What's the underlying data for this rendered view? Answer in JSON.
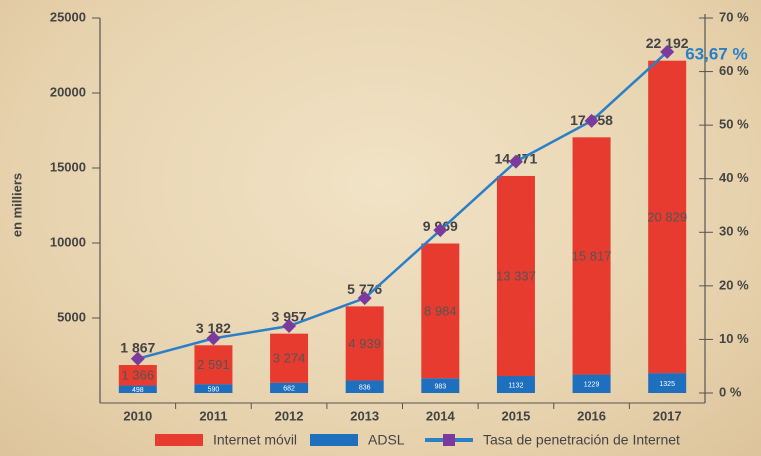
{
  "chart_data": {
    "type": "stacked_bar_line",
    "y_label": "en milliers",
    "categories": [
      "2010",
      "2011",
      "2012",
      "2013",
      "2014",
      "2015",
      "2016",
      "2017"
    ],
    "series": [
      {
        "name": "ADSL",
        "color": "#1f6fbf",
        "values": [
          498,
          590,
          682,
          836,
          983,
          1132,
          1229,
          1325
        ]
      },
      {
        "name": "Internet móvil",
        "color": "#e63b2e",
        "values": [
          1366,
          2591,
          3274,
          4939,
          8984,
          13337,
          15817,
          20829
        ],
        "value_labels": [
          "1 366",
          "2 591",
          "3 274",
          "4 939",
          "8 984",
          "13 337",
          "15 817",
          "20 829"
        ]
      },
      {
        "name": "Tasa de penetración de Internet",
        "color": "#2a7fc8",
        "marker_color": "#7b3b9c",
        "axis": "y2",
        "type": "line",
        "values": [
          6.4,
          10.2,
          12.5,
          17.7,
          30.4,
          43.2,
          50.8,
          63.67
        ]
      }
    ],
    "totals": [
      1867,
      3182,
      3957,
      5776,
      9969,
      14471,
      17058,
      22192
    ],
    "total_labels": [
      "1 867",
      "3 182",
      "3 957",
      "5 776",
      "9 969",
      "14 471",
      "17 058",
      "22 192"
    ],
    "annotation": "63,67 %",
    "ylim": [
      0,
      25000
    ],
    "yticks": [
      5000,
      10000,
      15000,
      20000,
      25000
    ],
    "y2lim": [
      0,
      70
    ],
    "y2ticks": [
      {
        "value": 0,
        "label": "0 %"
      },
      {
        "value": 10,
        "label": "10 %"
      },
      {
        "value": 20,
        "label": "20 %"
      },
      {
        "value": 30,
        "label": "30 %"
      },
      {
        "value": 40,
        "label": "40 %"
      },
      {
        "value": 50,
        "label": "50 %"
      },
      {
        "value": 60,
        "label": "60 %"
      },
      {
        "value": 70,
        "label": "70 %"
      }
    ],
    "legend": "bottom",
    "grid": false
  }
}
